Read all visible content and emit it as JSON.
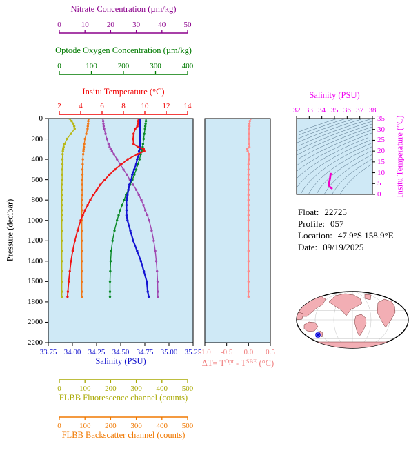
{
  "figure": {
    "background": "#ffffff"
  },
  "colors": {
    "plot_background": "#cfe9f6",
    "frame": "#000000"
  },
  "info": {
    "rows": [
      {
        "label": "Float:",
        "value": "22725"
      },
      {
        "label": "Profile:",
        "value": "057"
      },
      {
        "label": "Location:",
        "value": "47.9°S  158.9°E"
      },
      {
        "label": "Date:",
        "value": "09/19/2025"
      }
    ]
  },
  "map": {
    "land_color": "#f2aeb4",
    "ocean_color": "#ffffff",
    "marker_color": "#0000dd"
  },
  "chart_data": {
    "type": "line",
    "description": "Float vertical profiles vs pressure, delta-T plot, T-S diagram with isopycnals, and float location map",
    "plots": [
      {
        "id": "profiles",
        "ylabel": "Pressure (decibar)",
        "ylim": [
          0,
          2200
        ],
        "yticks": [
          0,
          200,
          400,
          600,
          800,
          1000,
          1200,
          1400,
          1600,
          1800,
          2000,
          2200
        ],
        "pressure": [
          0,
          25,
          50,
          75,
          100,
          150,
          200,
          250,
          280,
          300,
          320,
          350,
          400,
          450,
          500,
          550,
          600,
          650,
          700,
          750,
          800,
          850,
          900,
          950,
          1000,
          1100,
          1200,
          1300,
          1400,
          1500,
          1600,
          1700,
          1750
        ],
        "axes": [
          {
            "id": "nitrate",
            "label": "Nitrate Concentration (µm/kg)",
            "color": "#8b008b",
            "lim": [
              0,
              50
            ],
            "ticks": [
              "0",
              "10",
              "20",
              "30",
              "40",
              "50"
            ],
            "side": "top"
          },
          {
            "id": "oxygen",
            "label": "Optode Oxygen Concentration (µm/kg)",
            "color": "#007a00",
            "lim": [
              0,
              400
            ],
            "ticks": [
              "0",
              "100",
              "200",
              "300",
              "400"
            ],
            "side": "top"
          },
          {
            "id": "temperature",
            "label": "Insitu Temperature (°C)",
            "color": "#f00000",
            "lim": [
              2,
              14
            ],
            "ticks": [
              "2",
              "4",
              "6",
              "8",
              "10",
              "12",
              "14"
            ],
            "side": "top"
          },
          {
            "id": "salinity",
            "label": "Salinity (PSU)",
            "color": "#1414cd",
            "lim": [
              33.75,
              35.25
            ],
            "ticks": [
              "33.75",
              "34.00",
              "34.25",
              "34.50",
              "34.75",
              "35.00",
              "35.25"
            ],
            "side": "bottom"
          },
          {
            "id": "fluorescence",
            "label": "FLBB Fluorescence channel (counts)",
            "color": "#a8a800",
            "lim": [
              0,
              500
            ],
            "ticks": [
              "0",
              "100",
              "200",
              "300",
              "400",
              "500"
            ],
            "side": "bottom"
          },
          {
            "id": "backscatter",
            "label": "FLBB Backscatter channel (counts)",
            "color": "#f07800",
            "lim": [
              0,
              500
            ],
            "ticks": [
              "0",
              "100",
              "200",
              "300",
              "400",
              "500"
            ],
            "side": "bottom"
          }
        ],
        "series": [
          {
            "name": "FLBB Fluorescence channel",
            "axis": "fluorescence",
            "color": "#b8b818",
            "values": [
              40,
              48,
              55,
              58,
              60,
              45,
              30,
              20,
              17,
              15,
              14,
              13,
              12,
              12,
              11,
              11,
              11,
              10,
              10,
              10,
              10,
              10,
              10,
              10,
              10,
              10,
              10,
              10,
              10,
              10,
              10,
              10,
              10
            ]
          },
          {
            "name": "FLBB Backscatter channel",
            "axis": "backscatter",
            "color": "#f07818",
            "values": [
              115,
              113,
              112,
              111,
              110,
              105,
              100,
              97,
              96,
              95,
              94,
              93,
              92,
              91,
              90,
              90,
              89,
              89,
              89,
              89,
              88,
              88,
              88,
              88,
              88,
              88,
              88,
              88,
              88,
              88,
              88,
              88,
              88
            ]
          },
          {
            "name": "Nitrate Concentration",
            "axis": "nitrate",
            "color": "#a048b0",
            "values": [
              17.0,
              17.1,
              17.2,
              17.3,
              17.5,
              18.0,
              18.5,
              19.2,
              19.6,
              20.0,
              20.5,
              21.3,
              22.5,
              23.8,
              25.0,
              26.3,
              27.5,
              28.8,
              30.0,
              31.0,
              32.0,
              32.8,
              33.5,
              34.3,
              35.0,
              36.0,
              36.8,
              37.4,
              37.8,
              38.1,
              38.3,
              38.4,
              38.4
            ]
          },
          {
            "name": "Optode Oxygen Concentration",
            "axis": "oxygen",
            "color": "#0a8a28",
            "values": [
              270,
              270,
              269,
              268,
              267,
              265,
              263,
              261,
              260,
              258,
              257,
              254,
              250,
              245,
              240,
              234,
              228,
              221,
              215,
              208,
              202,
              196,
              190,
              185,
              180,
              172,
              166,
              162,
              160,
              159,
              158,
              158,
              158
            ]
          },
          {
            "name": "Salinity",
            "axis": "salinity",
            "color": "#1414d2",
            "values": [
              34.7,
              34.7,
              34.7,
              34.7,
              34.7,
              34.7,
              34.7,
              34.7,
              34.7,
              34.7,
              34.69,
              34.69,
              34.67,
              34.66,
              34.64,
              34.62,
              34.61,
              34.59,
              34.58,
              34.57,
              34.56,
              34.56,
              34.56,
              34.56,
              34.57,
              34.6,
              34.63,
              34.67,
              34.71,
              34.74,
              34.77,
              34.78,
              34.79
            ]
          },
          {
            "name": "Insitu Temperature",
            "axis": "temperature",
            "color": "#f01414",
            "values": [
              9.4,
              9.38,
              9.35,
              9.3,
              9.1,
              8.95,
              8.9,
              8.95,
              9.4,
              9.9,
              9.95,
              9.3,
              8.4,
              7.8,
              7.2,
              6.7,
              6.25,
              5.85,
              5.5,
              5.2,
              4.9,
              4.65,
              4.4,
              4.2,
              4.0,
              3.7,
              3.45,
              3.25,
              3.1,
              2.98,
              2.88,
              2.8,
              2.77
            ]
          }
        ]
      },
      {
        "id": "delta-t",
        "xlabel_parts": {
          "p1": "ΔT= T",
          "sup1": "Opt",
          "p2": " - T",
          "sup2": "SBE",
          "p3": " (°C)"
        },
        "color": "#f08080",
        "curve_color": "#ff8a8a",
        "xlim": [
          -1.0,
          0.5
        ],
        "xticks": [
          "-1.0",
          "-0.5",
          "0.0",
          "0.5"
        ],
        "ylim": [
          0,
          2200
        ],
        "pressure": [
          0,
          25,
          50,
          75,
          100,
          150,
          200,
          250,
          280,
          300,
          320,
          350,
          400,
          450,
          500,
          550,
          600,
          650,
          700,
          750,
          800,
          850,
          900,
          950,
          1000,
          1100,
          1200,
          1300,
          1400,
          1500,
          1600,
          1700,
          1750
        ],
        "values": [
          0.05,
          0.03,
          0.02,
          0.02,
          0.01,
          0.01,
          0.01,
          0.01,
          0.02,
          -0.03,
          -0.02,
          0.01,
          0.01,
          0.0,
          0.0,
          0.0,
          0.0,
          0.0,
          0.0,
          0.0,
          0.0,
          0.0,
          0.0,
          0.0,
          0.0,
          0.0,
          0.0,
          0.0,
          0.0,
          0.0,
          0.0,
          0.0,
          0.0
        ]
      },
      {
        "id": "ts-diagram",
        "xlabel": "Salinity (PSU)",
        "ylabel": "Insitu Temperature (°C)",
        "color": "#f000f0",
        "curve_color": "#f000c8",
        "xlim": [
          32,
          38
        ],
        "xticks": [
          "32",
          "33",
          "34",
          "35",
          "36",
          "37",
          "38"
        ],
        "ylim": [
          0,
          35
        ],
        "yticks": [
          "0",
          "5",
          "10",
          "15",
          "20",
          "25",
          "30",
          "35"
        ],
        "salinity": [
          34.7,
          34.7,
          34.7,
          34.7,
          34.69,
          34.67,
          34.64,
          34.61,
          34.58,
          34.56,
          34.56,
          34.57,
          34.6,
          34.63,
          34.67,
          34.71,
          34.74,
          34.77,
          34.78
        ],
        "temperature": [
          9.4,
          9.1,
          8.9,
          9.9,
          9.3,
          8.4,
          7.2,
          6.25,
          5.5,
          4.9,
          4.4,
          4.0,
          3.7,
          3.45,
          3.25,
          3.1,
          2.98,
          2.88,
          2.8
        ],
        "isopycnal_sigma_levels": [
          20,
          20.5,
          21,
          21.5,
          22,
          22.5,
          23,
          23.5,
          24,
          24.5,
          25,
          25.5,
          26,
          26.5,
          27,
          27.5,
          28,
          28.5
        ]
      }
    ]
  }
}
